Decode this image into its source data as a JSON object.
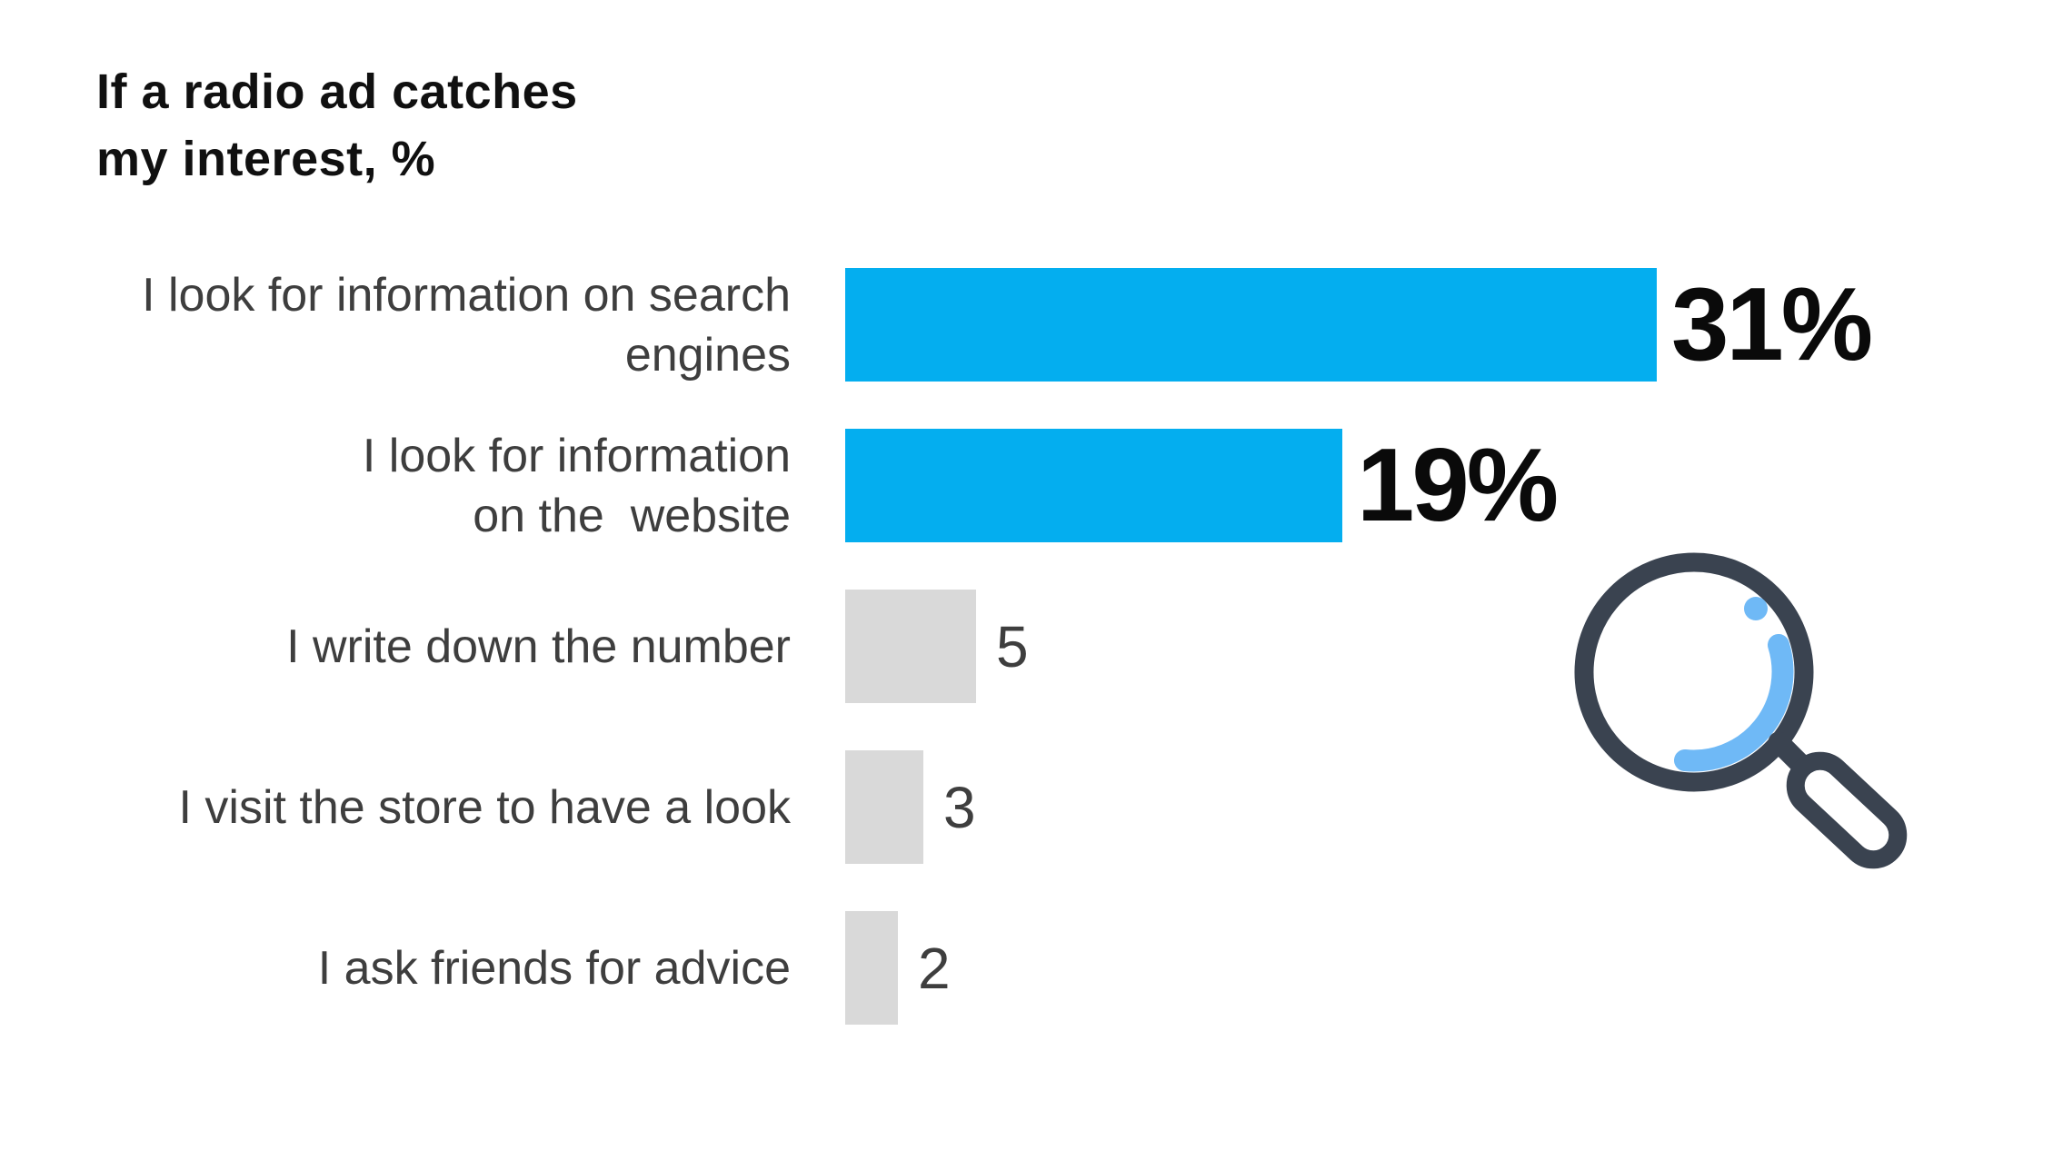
{
  "page": {
    "background": "#ffffff"
  },
  "chart_data": {
    "type": "bar",
    "orientation": "horizontal",
    "title": "If a radio ad catches\nmy interest, %",
    "unit": "%",
    "categories": [
      "I look for information on search engines",
      "I look for information on the website",
      "I write down the number",
      "I visit the store to have a look",
      "I ask friends for advice"
    ],
    "values": [
      31,
      19,
      5,
      3,
      2
    ],
    "rows": [
      {
        "label": "I look for information on search\nengines",
        "value": 31,
        "value_label": "31%",
        "highlighted": true
      },
      {
        "label": "I look for information\non the  website",
        "value": 19,
        "value_label": "19%",
        "highlighted": true
      },
      {
        "label": "I write down the number",
        "value": 5,
        "value_label": "5",
        "highlighted": false
      },
      {
        "label": "I visit the store to have a look",
        "value": 3,
        "value_label": "3",
        "highlighted": false
      },
      {
        "label": "I ask friends for advice",
        "value": 2,
        "value_label": "2",
        "highlighted": false
      }
    ],
    "xlim": [
      0,
      31
    ],
    "grid": false,
    "legend": "none",
    "colors": {
      "highlight_bar": "#04aeef",
      "muted_bar": "#d9d9d9",
      "title_text": "#101010",
      "label_text": "#3e3e3e",
      "value_text_big": "#0a0a0a",
      "value_text_small": "#3e3e3e"
    }
  },
  "icon": {
    "name": "magnifier-icon",
    "stroke_color": "#3a4350",
    "accent_color": "#6fb9f6"
  }
}
